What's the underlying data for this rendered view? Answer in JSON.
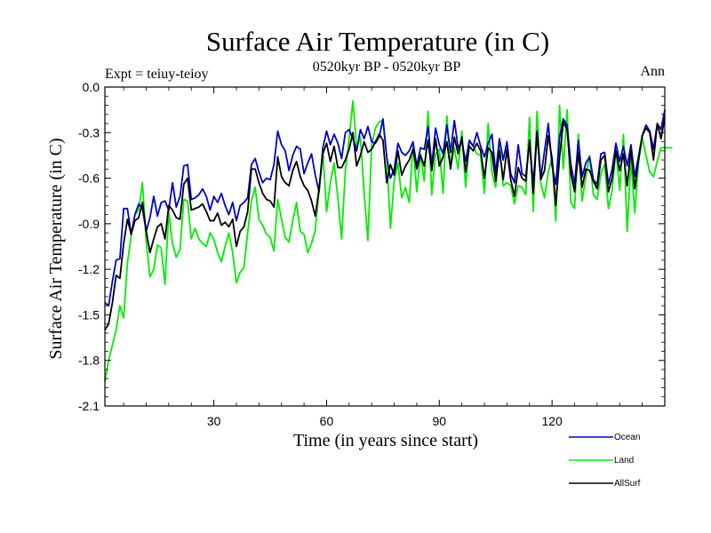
{
  "chart_data": {
    "type": "line",
    "title": "Surface Air Temperature (in C)",
    "subtitle": "0520kyr BP - 0520kyr BP",
    "left_note": "Expt = teiuy-teioy",
    "right_note": "Ann",
    "xlabel": "Time (in years since start)",
    "ylabel": "Surface Air Temperature (in C)",
    "xlim": [
      1,
      150
    ],
    "ylim": [
      -2.1,
      0.0
    ],
    "xticks": [
      30,
      60,
      90,
      120
    ],
    "yticks": [
      0.0,
      -0.3,
      -0.6,
      -0.9,
      -1.2,
      -1.5,
      -1.8,
      -2.1
    ],
    "ytick_labels": [
      "0.0",
      "-0.3",
      "-0.6",
      "-0.9",
      "-1.2",
      "-1.5",
      "-1.8",
      "-2.1"
    ],
    "legend_position": "bottom-right",
    "series": [
      {
        "name": "Ocean",
        "color": "#0000cc",
        "values": [
          -1.42,
          -1.44,
          -1.28,
          -1.14,
          -1.13,
          -0.8,
          -0.8,
          -0.97,
          -0.84,
          -0.77,
          -0.8,
          -0.95,
          -0.86,
          -0.72,
          -0.85,
          -0.76,
          -0.75,
          -0.81,
          -0.63,
          -0.79,
          -0.72,
          -0.52,
          -0.51,
          -0.74,
          -0.73,
          -0.71,
          -0.67,
          -0.72,
          -0.81,
          -0.72,
          -0.76,
          -0.7,
          -0.78,
          -0.84,
          -0.76,
          -0.88,
          -0.78,
          -0.76,
          -0.73,
          -0.51,
          -0.47,
          -0.56,
          -0.63,
          -0.6,
          -0.61,
          -0.51,
          -0.29,
          -0.38,
          -0.42,
          -0.55,
          -0.45,
          -0.39,
          -0.41,
          -0.57,
          -0.5,
          -0.44,
          -0.58,
          -0.69,
          -0.4,
          -0.29,
          -0.38,
          -0.31,
          -0.37,
          -0.47,
          -0.3,
          -0.28,
          -0.34,
          -0.42,
          -0.28,
          -0.34,
          -0.26,
          -0.36,
          -0.37,
          -0.33,
          -0.21,
          -0.46,
          -0.6,
          -0.54,
          -0.37,
          -0.43,
          -0.45,
          -0.42,
          -0.36,
          -0.52,
          -0.4,
          -0.41,
          -0.26,
          -0.52,
          -0.27,
          -0.38,
          -0.44,
          -0.25,
          -0.43,
          -0.22,
          -0.4,
          -0.36,
          -0.49,
          -0.35,
          -0.39,
          -0.3,
          -0.39,
          -0.46,
          -0.37,
          -0.31,
          -0.57,
          -0.34,
          -0.48,
          -0.36,
          -0.57,
          -0.63,
          -0.38,
          -0.57,
          -0.59,
          -0.36,
          -0.64,
          -0.29,
          -0.6,
          -0.42,
          -0.24,
          -0.52,
          -0.64,
          -0.33,
          -0.21,
          -0.25,
          -0.51,
          -0.64,
          -0.35,
          -0.59,
          -0.5,
          -0.46,
          -0.61,
          -0.64,
          -0.44,
          -0.43,
          -0.64,
          -0.54,
          -0.37,
          -0.49,
          -0.39,
          -0.52,
          -0.38,
          -0.59,
          -0.46,
          -0.32,
          -0.25,
          -0.29,
          -0.41,
          -0.24,
          -0.28,
          -0.15
        ]
      },
      {
        "name": "Land",
        "color": "#00ee00",
        "values": [
          -1.94,
          -1.8,
          -1.7,
          -1.6,
          -1.44,
          -1.52,
          -1.16,
          -0.98,
          -0.84,
          -0.81,
          -0.63,
          -1.02,
          -1.25,
          -1.2,
          -1.04,
          -1.06,
          -1.3,
          -0.82,
          -1.03,
          -1.12,
          -1.07,
          -0.74,
          -0.75,
          -1.0,
          -0.93,
          -1.0,
          -1.03,
          -1.05,
          -0.96,
          -1.0,
          -1.09,
          -1.15,
          -1.05,
          -0.96,
          -1.09,
          -1.29,
          -1.22,
          -1.19,
          -0.96,
          -0.75,
          -0.66,
          -0.87,
          -0.91,
          -0.97,
          -0.99,
          -1.08,
          -0.74,
          -0.87,
          -0.99,
          -1.02,
          -0.88,
          -0.76,
          -0.95,
          -0.97,
          -1.09,
          -1.03,
          -0.94,
          -0.68,
          -0.42,
          -0.82,
          -0.63,
          -0.5,
          -0.73,
          -1.0,
          -0.55,
          -0.34,
          -0.09,
          -0.4,
          -0.33,
          -0.7,
          -1.01,
          -0.38,
          -0.27,
          -0.23,
          -0.22,
          -0.46,
          -0.93,
          -0.61,
          -0.5,
          -0.73,
          -0.66,
          -0.76,
          -0.37,
          -0.69,
          -0.44,
          -0.62,
          -0.16,
          -0.71,
          -0.44,
          -0.41,
          -0.7,
          -0.19,
          -0.53,
          -0.4,
          -0.54,
          -0.29,
          -0.66,
          -0.36,
          -0.39,
          -0.44,
          -0.45,
          -0.7,
          -0.24,
          -0.56,
          -0.66,
          -0.38,
          -0.65,
          -0.63,
          -0.65,
          -0.77,
          -0.65,
          -0.66,
          -0.71,
          -0.2,
          -0.82,
          -0.16,
          -0.63,
          -0.73,
          -0.56,
          -0.46,
          -0.88,
          -0.12,
          -0.54,
          -0.15,
          -0.76,
          -0.8,
          -0.31,
          -0.75,
          -0.59,
          -0.45,
          -0.71,
          -0.74,
          -0.57,
          -0.51,
          -0.8,
          -0.68,
          -0.41,
          -0.68,
          -0.31,
          -0.95,
          -0.48,
          -0.83,
          -0.5,
          -0.33,
          -0.45,
          -0.56,
          -0.59,
          -0.49,
          -0.4,
          -0.4,
          -0.4,
          -0.4
        ]
      },
      {
        "name": "AllSurf",
        "color": "#000000",
        "values": [
          -1.6,
          -1.56,
          -1.42,
          -1.24,
          -1.26,
          -1.03,
          -0.87,
          -0.97,
          -0.88,
          -0.86,
          -0.76,
          -0.95,
          -1.09,
          -1.0,
          -0.92,
          -0.9,
          -1.0,
          -0.78,
          -0.81,
          -0.86,
          -0.87,
          -0.64,
          -0.6,
          -0.81,
          -0.8,
          -0.79,
          -0.77,
          -0.82,
          -0.88,
          -0.88,
          -0.83,
          -0.91,
          -0.89,
          -0.92,
          -0.87,
          -1.05,
          -0.95,
          -0.92,
          -0.82,
          -0.54,
          -0.54,
          -0.63,
          -0.7,
          -0.74,
          -0.75,
          -0.79,
          -0.46,
          -0.59,
          -0.63,
          -0.65,
          -0.55,
          -0.49,
          -0.59,
          -0.65,
          -0.68,
          -0.75,
          -0.85,
          -0.67,
          -0.44,
          -0.37,
          -0.49,
          -0.39,
          -0.53,
          -0.53,
          -0.48,
          -0.41,
          -0.3,
          -0.52,
          -0.45,
          -0.36,
          -0.43,
          -0.41,
          -0.36,
          -0.31,
          -0.35,
          -0.63,
          -0.51,
          -0.58,
          -0.42,
          -0.58,
          -0.52,
          -0.48,
          -0.41,
          -0.54,
          -0.45,
          -0.52,
          -0.35,
          -0.55,
          -0.34,
          -0.52,
          -0.46,
          -0.36,
          -0.54,
          -0.33,
          -0.44,
          -0.33,
          -0.56,
          -0.39,
          -0.42,
          -0.37,
          -0.42,
          -0.6,
          -0.4,
          -0.43,
          -0.62,
          -0.42,
          -0.61,
          -0.41,
          -0.61,
          -0.72,
          -0.53,
          -0.6,
          -0.62,
          -0.35,
          -0.7,
          -0.3,
          -0.61,
          -0.55,
          -0.32,
          -0.47,
          -0.78,
          -0.46,
          -0.23,
          -0.28,
          -0.57,
          -0.69,
          -0.43,
          -0.66,
          -0.54,
          -0.55,
          -0.62,
          -0.67,
          -0.48,
          -0.45,
          -0.69,
          -0.6,
          -0.42,
          -0.55,
          -0.44,
          -0.65,
          -0.41,
          -0.67,
          -0.48,
          -0.32,
          -0.27,
          -0.3,
          -0.48,
          -0.24,
          -0.34,
          -0.2
        ]
      }
    ]
  }
}
